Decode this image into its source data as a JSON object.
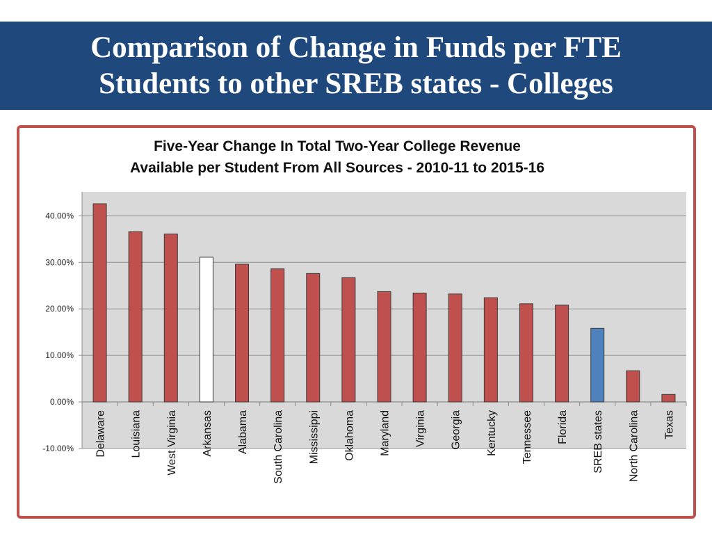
{
  "slide": {
    "title_line1": "Comparison of Change in Funds per FTE",
    "title_line2": "Students to other SREB states - Colleges"
  },
  "colors": {
    "header_bg": "#1f497d",
    "frame_border": "#c0504d",
    "bar_default": "#c0504d",
    "bar_arkansas": "#ffffff",
    "bar_sreb": "#4f81bd",
    "plot_bg": "#d9d9d9"
  },
  "chart_data": {
    "type": "bar",
    "title_line1": "Five-Year Change In Total Two-Year College Revenue",
    "title_line2": "Available per Student From All Sources - 2010-11 to 2015-16",
    "categories": [
      "Delaware",
      "Louisiana",
      "West Virginia",
      "Arkansas",
      "Alabama",
      "South Carolina",
      "Mississippi",
      "Oklahoma",
      "Maryland",
      "Virginia",
      "Georgia",
      "Kentucky",
      "Tennessee",
      "Florida",
      "SREB states",
      "North Carolina",
      "Texas"
    ],
    "values": [
      42.6,
      36.6,
      36.1,
      31.1,
      29.6,
      28.6,
      27.6,
      26.7,
      23.7,
      23.4,
      23.2,
      22.4,
      21.1,
      20.8,
      15.8,
      6.7,
      1.6
    ],
    "highlight": {
      "Arkansas": "white",
      "SREB states": "blue"
    },
    "ylim": [
      -10,
      45
    ],
    "yticks": [
      40,
      30,
      20,
      10,
      0,
      -10
    ],
    "ytick_labels": [
      "40.00%",
      "30.00%",
      "20.00%",
      "10.00%",
      "0.00%",
      "-10.00%"
    ],
    "grid": true,
    "xlabel": "",
    "ylabel": ""
  }
}
